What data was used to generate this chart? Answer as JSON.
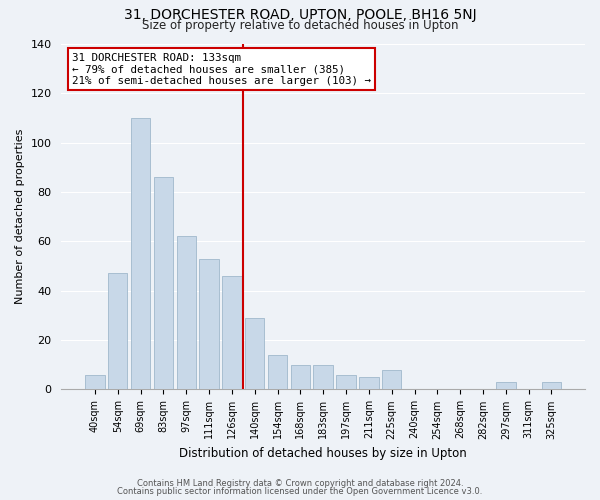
{
  "title_line1": "31, DORCHESTER ROAD, UPTON, POOLE, BH16 5NJ",
  "title_line2": "Size of property relative to detached houses in Upton",
  "xlabel": "Distribution of detached houses by size in Upton",
  "ylabel": "Number of detached properties",
  "bar_labels": [
    "40sqm",
    "54sqm",
    "69sqm",
    "83sqm",
    "97sqm",
    "111sqm",
    "126sqm",
    "140sqm",
    "154sqm",
    "168sqm",
    "183sqm",
    "197sqm",
    "211sqm",
    "225sqm",
    "240sqm",
    "254sqm",
    "268sqm",
    "282sqm",
    "297sqm",
    "311sqm",
    "325sqm"
  ],
  "bar_values": [
    6,
    47,
    110,
    86,
    62,
    53,
    46,
    29,
    14,
    10,
    10,
    6,
    5,
    8,
    0,
    0,
    0,
    0,
    3,
    0,
    3
  ],
  "bar_color": "#c8d8e8",
  "bar_edge_color": "#a0b8cc",
  "highlight_bar_index": 7,
  "highlight_line_color": "#cc0000",
  "ylim": [
    0,
    140
  ],
  "yticks": [
    0,
    20,
    40,
    60,
    80,
    100,
    120,
    140
  ],
  "annotation_title": "31 DORCHESTER ROAD: 133sqm",
  "annotation_line1": "← 79% of detached houses are smaller (385)",
  "annotation_line2": "21% of semi-detached houses are larger (103) →",
  "annotation_box_color": "#ffffff",
  "annotation_box_edge": "#cc0000",
  "footer_line1": "Contains HM Land Registry data © Crown copyright and database right 2024.",
  "footer_line2": "Contains public sector information licensed under the Open Government Licence v3.0.",
  "background_color": "#eef2f7",
  "grid_color": "#ffffff",
  "spine_color": "#aaaaaa"
}
